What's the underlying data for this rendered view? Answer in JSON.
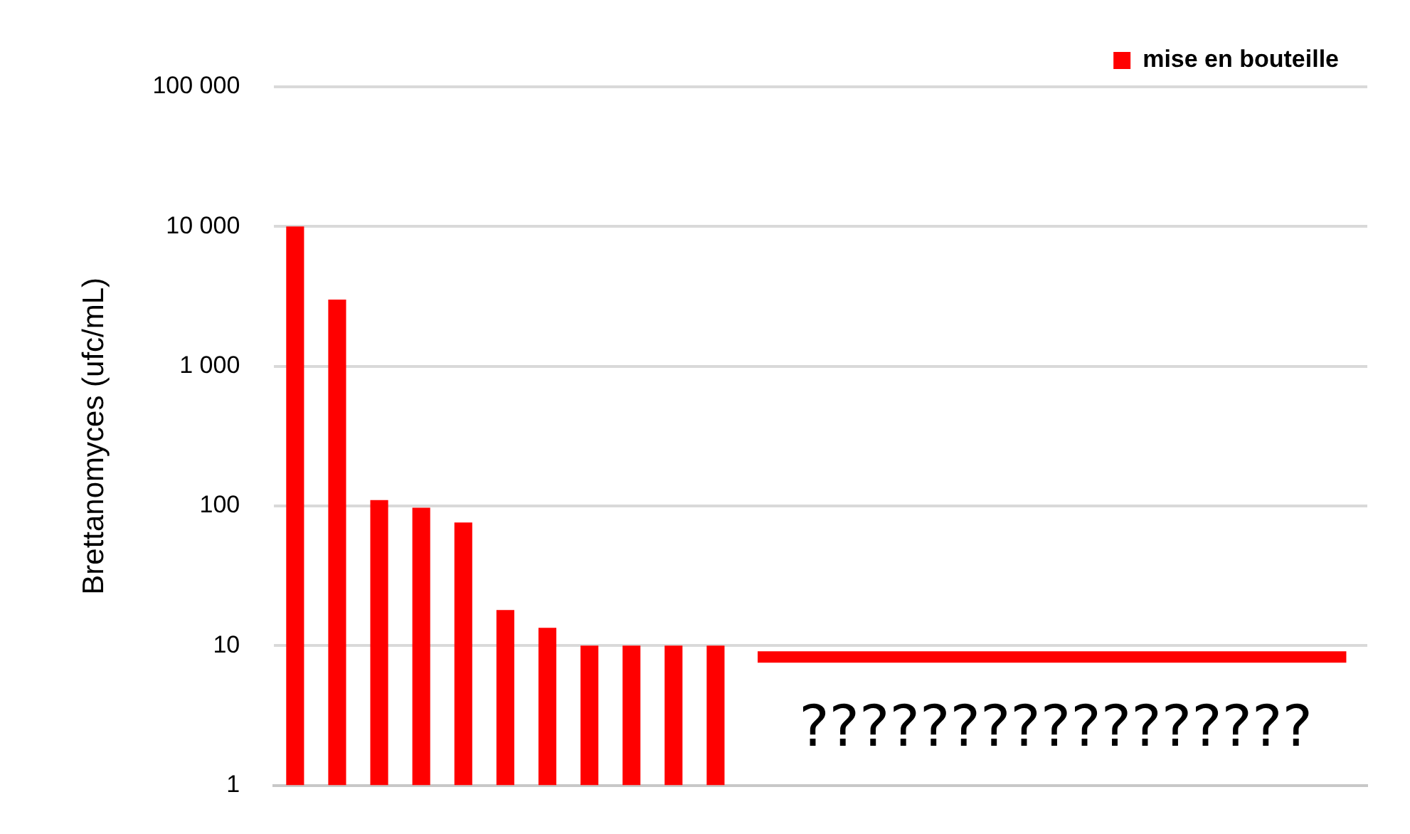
{
  "chart_data": {
    "type": "bar",
    "ylabel": "Brettanomyces (ufc/mL)",
    "categories": [
      null,
      null,
      null,
      null,
      null,
      null,
      null,
      null,
      null,
      null,
      null,
      null,
      null,
      null,
      null,
      null,
      null,
      null,
      null,
      null,
      null,
      null,
      null,
      null,
      null,
      null
    ],
    "series": [
      {
        "name": "mise en bouteille",
        "color": "#ff0000",
        "values": [
          10000,
          3000,
          110,
          97,
          76,
          18,
          13.4,
          10,
          10,
          10,
          10,
          null,
          null,
          null,
          null,
          null,
          null,
          null,
          null,
          null,
          null,
          null,
          null,
          null,
          null,
          null
        ]
      },
      {
        "type": "line",
        "color": "#ff0000",
        "values": [
          null,
          null,
          null,
          null,
          null,
          null,
          null,
          null,
          null,
          null,
          null,
          8.3,
          8.3,
          8.3,
          8.3,
          8.3,
          8.3,
          8.3,
          8.3,
          8.3,
          8.3,
          8.3,
          8.3,
          8.3,
          8.3,
          8.3
        ]
      }
    ],
    "log": "y",
    "ylim": [
      1,
      100000
    ],
    "yticks": [
      1,
      10,
      {
        "value": 100,
        "label": "100"
      },
      {
        "value": 1000,
        "label": "1 000"
      },
      {
        "value": 10000,
        "label": "10 000"
      },
      {
        "value": 100000,
        "label": "100 000"
      }
    ],
    "grid": "y",
    "legend": "top right",
    "marker": "none",
    "line_style": "solid",
    "tick_labels": "y",
    "annotations": [
      "?????????????????"
    ]
  }
}
